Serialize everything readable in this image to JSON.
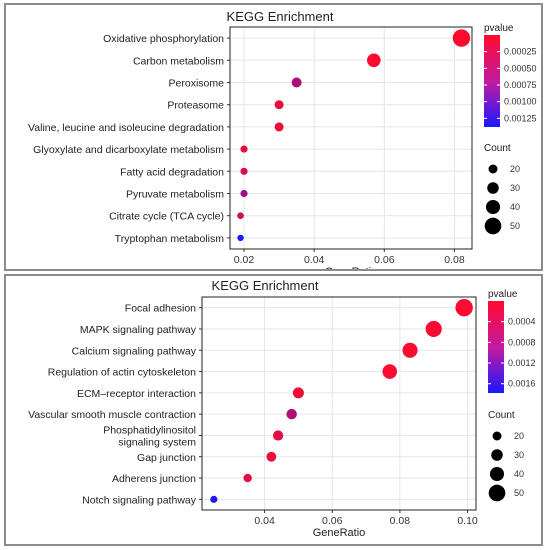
{
  "chart_data": [
    {
      "type": "scatter",
      "title": "KEGG Enrichment",
      "xlabel": "GeneRatio",
      "ylabel": "",
      "categories": [
        "Oxidative phosphorylation",
        "Carbon metabolism",
        "Peroxisome",
        "Proteasome",
        "Valine, leucine and isoleucine degradation",
        "Glyoxylate and dicarboxylate metabolism",
        "Fatty acid degradation",
        "Pyruvate metabolism",
        "Citrate cycle (TCA cycle)",
        "Tryptophan metabolism"
      ],
      "gene_ratio": [
        0.082,
        0.057,
        0.035,
        0.03,
        0.03,
        0.02,
        0.02,
        0.02,
        0.019,
        0.019
      ],
      "count": [
        53,
        38,
        24,
        20,
        20,
        13,
        13,
        13,
        11,
        10
      ],
      "pvalue": [
        0.0,
        2e-05,
        0.0005,
        0.0001,
        0.0001,
        0.00015,
        0.0002,
        0.0006,
        0.0003,
        0.0014
      ],
      "xlim": [
        0.016,
        0.085
      ],
      "xticks": [
        "0.02",
        "0.04",
        "0.06",
        "0.08"
      ],
      "xtick_values": [
        0.02,
        0.04,
        0.06,
        0.08
      ],
      "color_legend": {
        "title": "pvalue",
        "labels": [
          "0.00025",
          "0.00050",
          "0.00075",
          "0.00100",
          "0.00125"
        ],
        "values": [
          0.00025,
          0.0005,
          0.00075,
          0.001,
          0.00125
        ],
        "range": [
          0.0,
          0.00138
        ],
        "low_color": "#ff0a2d",
        "high_color": "#1a18ff"
      },
      "size_legend": {
        "title": "Count",
        "labels": [
          "20",
          "30",
          "40",
          "50"
        ],
        "values": [
          20,
          30,
          40,
          50
        ]
      },
      "grid": true
    },
    {
      "type": "scatter",
      "title": "KEGG Enrichment",
      "xlabel": "GeneRatio",
      "ylabel": "",
      "categories": [
        "Focal adhesion",
        "MAPK signaling pathway",
        "Calcium signaling pathway",
        "Regulation of actin cytoskeleton",
        "ECM–receptor interaction",
        "Vascular smooth muscle contraction",
        "Phosphatidylinositol\nsignaling system",
        "Gap junction",
        "Adherens junction",
        "Notch signaling pathway"
      ],
      "gene_ratio": [
        0.099,
        0.09,
        0.083,
        0.077,
        0.05,
        0.048,
        0.044,
        0.042,
        0.035,
        0.025
      ],
      "count": [
        53,
        48,
        44,
        42,
        28,
        26,
        25,
        23,
        18,
        13
      ],
      "pvalue": [
        2e-05,
        5e-05,
        2e-05,
        3e-05,
        0.0001,
        0.0006,
        0.0002,
        0.00015,
        0.0002,
        0.0017
      ],
      "xlim": [
        0.0215,
        0.1025
      ],
      "xticks": [
        "0.04",
        "0.06",
        "0.08",
        "0.10"
      ],
      "xtick_values": [
        0.04,
        0.06,
        0.08,
        0.1
      ],
      "color_legend": {
        "title": "pvalue",
        "labels": [
          "0.0004",
          "0.0008",
          "0.0012",
          "0.0016"
        ],
        "values": [
          0.0004,
          0.0008,
          0.0012,
          0.0016
        ],
        "range": [
          0.0,
          0.00178
        ],
        "low_color": "#ff0a2d",
        "high_color": "#1a18ff"
      },
      "size_legend": {
        "title": "Count",
        "labels": [
          "20",
          "30",
          "40",
          "50"
        ],
        "values": [
          20,
          30,
          40,
          50
        ]
      },
      "grid": true
    }
  ]
}
